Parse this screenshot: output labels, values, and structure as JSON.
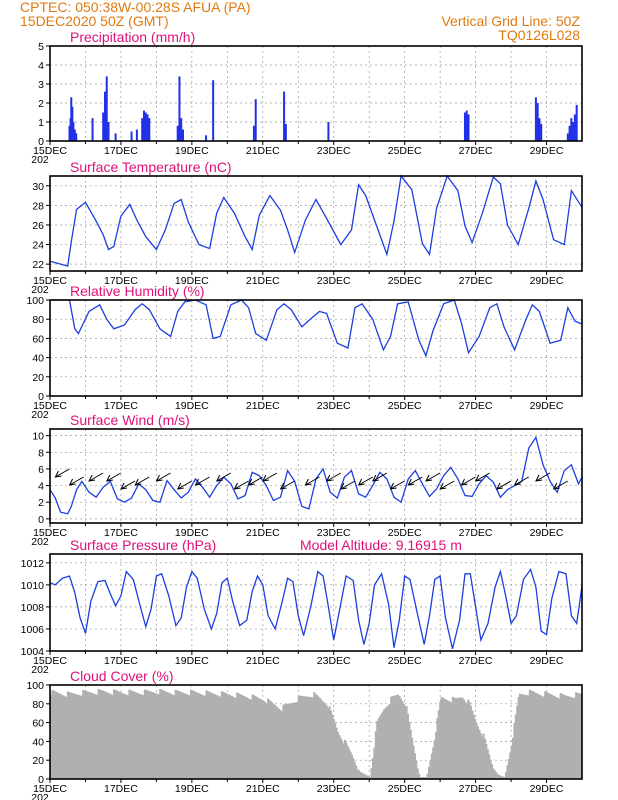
{
  "header": {
    "line1_left": "CPTEC:   050:38W-00:28S   AFUA (PA)",
    "line2_left": "15DEC2020 50Z (GMT)",
    "line1_right": "Vertical Grid Line: 50Z",
    "line2_right": "TQ0126L028"
  },
  "model_altitude": "Model Altitude: 9.16915 m",
  "x_labels": [
    "15DEC",
    "17DEC",
    "19DEC",
    "21DEC",
    "23DEC",
    "25DEC",
    "27DEC",
    "29DEC"
  ],
  "x_year_stub": "202",
  "colors": {
    "header": "#e07a10",
    "title": "#e0107a",
    "series": "#1c3fe0",
    "precip": "#2030e8",
    "cloud": "#b0b0b0"
  },
  "chart_data": [
    {
      "type": "bar",
      "title": "Precipitation (mm/h)",
      "ylim": [
        0,
        5
      ],
      "yticks": [
        "0",
        "1",
        "2",
        "3",
        "4",
        "5"
      ],
      "x_range_days": [
        0,
        15
      ],
      "events": [
        {
          "x": 0.55,
          "y": 0.8
        },
        {
          "x": 0.58,
          "y": 1.2
        },
        {
          "x": 0.6,
          "y": 2.3
        },
        {
          "x": 0.63,
          "y": 1.8
        },
        {
          "x": 0.66,
          "y": 1.0
        },
        {
          "x": 0.7,
          "y": 0.6
        },
        {
          "x": 0.74,
          "y": 0.4
        },
        {
          "x": 1.2,
          "y": 1.2
        },
        {
          "x": 1.5,
          "y": 1.5
        },
        {
          "x": 1.55,
          "y": 2.6
        },
        {
          "x": 1.6,
          "y": 3.4
        },
        {
          "x": 1.65,
          "y": 1.0
        },
        {
          "x": 1.85,
          "y": 0.4
        },
        {
          "x": 2.3,
          "y": 0.5
        },
        {
          "x": 2.45,
          "y": 0.6
        },
        {
          "x": 2.6,
          "y": 1.2
        },
        {
          "x": 2.65,
          "y": 1.6
        },
        {
          "x": 2.7,
          "y": 1.5
        },
        {
          "x": 2.75,
          "y": 1.4
        },
        {
          "x": 2.8,
          "y": 1.2
        },
        {
          "x": 3.6,
          "y": 0.8
        },
        {
          "x": 3.65,
          "y": 3.4
        },
        {
          "x": 3.7,
          "y": 1.2
        },
        {
          "x": 3.75,
          "y": 0.6
        },
        {
          "x": 4.4,
          "y": 0.3
        },
        {
          "x": 4.6,
          "y": 3.2
        },
        {
          "x": 5.75,
          "y": 0.8
        },
        {
          "x": 5.8,
          "y": 2.2
        },
        {
          "x": 6.6,
          "y": 2.6
        },
        {
          "x": 6.65,
          "y": 0.9
        },
        {
          "x": 7.85,
          "y": 1.0
        },
        {
          "x": 11.7,
          "y": 1.5
        },
        {
          "x": 11.75,
          "y": 1.6
        },
        {
          "x": 11.8,
          "y": 1.4
        },
        {
          "x": 13.7,
          "y": 2.3
        },
        {
          "x": 13.75,
          "y": 2.0
        },
        {
          "x": 13.8,
          "y": 1.2
        },
        {
          "x": 13.85,
          "y": 0.9
        },
        {
          "x": 14.6,
          "y": 0.4
        },
        {
          "x": 14.65,
          "y": 0.8
        },
        {
          "x": 14.7,
          "y": 1.2
        },
        {
          "x": 14.75,
          "y": 1.0
        },
        {
          "x": 14.8,
          "y": 1.4
        },
        {
          "x": 14.85,
          "y": 1.9
        }
      ]
    },
    {
      "type": "line",
      "title": "Surface Temperature (nC)",
      "ylim": [
        21.3,
        31
      ],
      "yticks": [
        "22",
        "24",
        "26",
        "28",
        "30"
      ],
      "ytick_values": [
        22,
        24,
        26,
        28,
        30
      ],
      "x": [
        0,
        0.3,
        0.5,
        0.6,
        0.75,
        1.0,
        1.3,
        1.5,
        1.65,
        1.8,
        2.0,
        2.25,
        2.45,
        2.7,
        3.0,
        3.25,
        3.5,
        3.7,
        3.9,
        4.2,
        4.5,
        4.7,
        4.9,
        5.2,
        5.5,
        5.7,
        5.9,
        6.2,
        6.5,
        6.7,
        6.9,
        7.2,
        7.5,
        7.7,
        7.9,
        8.2,
        8.5,
        8.7,
        8.9,
        9.2,
        9.5,
        9.7,
        9.9,
        10.2,
        10.5,
        10.7,
        10.9,
        11.2,
        11.5,
        11.7,
        11.9,
        12.2,
        12.5,
        12.7,
        12.9,
        13.2,
        13.5,
        13.7,
        13.9,
        14.2,
        14.5,
        14.7,
        15.0
      ],
      "y": [
        22.3,
        22.0,
        21.8,
        24.3,
        27.6,
        28.3,
        26.4,
        25.0,
        23.5,
        23.8,
        26.9,
        28.1,
        26.5,
        24.8,
        23.5,
        25.5,
        28.2,
        28.6,
        26.3,
        24.0,
        23.6,
        27.2,
        28.8,
        27.2,
        24.8,
        23.5,
        27.0,
        29.0,
        27.5,
        25.5,
        23.2,
        26.5,
        28.6,
        27.3,
        26.0,
        24.0,
        25.5,
        30.1,
        29.0,
        26.0,
        23.0,
        26.4,
        31.0,
        29.6,
        24.1,
        23.0,
        27.7,
        31.0,
        29.5,
        25.9,
        24.2,
        27.3,
        30.9,
        30.2,
        26.0,
        24.0,
        27.7,
        30.5,
        28.6,
        24.5,
        24.0,
        29.5,
        27.8
      ]
    },
    {
      "type": "line",
      "title": "Relative Humidity (%)",
      "ylim": [
        0,
        100
      ],
      "yticks": [
        "0",
        "20",
        "40",
        "60",
        "80",
        "100"
      ],
      "ytick_values": [
        0,
        20,
        40,
        60,
        80,
        100
      ],
      "x": [
        0,
        0.3,
        0.55,
        0.7,
        0.8,
        1.1,
        1.4,
        1.6,
        1.8,
        2.1,
        2.4,
        2.6,
        2.8,
        3.1,
        3.4,
        3.6,
        3.8,
        4.1,
        4.4,
        4.6,
        4.8,
        5.1,
        5.4,
        5.6,
        5.8,
        6.1,
        6.4,
        6.6,
        6.8,
        7.1,
        7.4,
        7.6,
        7.8,
        8.1,
        8.4,
        8.6,
        8.8,
        9.1,
        9.4,
        9.6,
        9.8,
        10.1,
        10.4,
        10.6,
        10.8,
        11.1,
        11.4,
        11.6,
        11.8,
        12.1,
        12.4,
        12.6,
        12.8,
        13.1,
        13.4,
        13.6,
        13.8,
        14.1,
        14.4,
        14.6,
        14.8,
        15.0
      ],
      "y": [
        100,
        100,
        100,
        70,
        65,
        88,
        95,
        80,
        70,
        74,
        90,
        96,
        90,
        70,
        62,
        88,
        98,
        100,
        95,
        60,
        62,
        95,
        100,
        92,
        65,
        58,
        90,
        96,
        90,
        72,
        82,
        88,
        86,
        55,
        50,
        92,
        96,
        80,
        48,
        62,
        96,
        98,
        58,
        42,
        68,
        96,
        100,
        76,
        45,
        62,
        92,
        96,
        72,
        48,
        78,
        95,
        88,
        55,
        58,
        92,
        78,
        75
      ]
    },
    {
      "type": "line",
      "title": "Surface Wind (m/s)",
      "ylim": [
        -0.5,
        10.8
      ],
      "yticks": [
        "0",
        "2",
        "4",
        "6",
        "8",
        "10"
      ],
      "ytick_values": [
        0,
        2,
        4,
        6,
        8,
        10
      ],
      "x": [
        0,
        0.15,
        0.3,
        0.5,
        0.6,
        0.75,
        0.9,
        1.1,
        1.3,
        1.5,
        1.7,
        1.9,
        2.1,
        2.3,
        2.5,
        2.7,
        2.9,
        3.1,
        3.3,
        3.5,
        3.7,
        3.9,
        4.1,
        4.3,
        4.5,
        4.7,
        4.9,
        5.1,
        5.3,
        5.5,
        5.7,
        5.9,
        6.1,
        6.3,
        6.5,
        6.7,
        6.9,
        7.1,
        7.3,
        7.5,
        7.7,
        7.9,
        8.1,
        8.3,
        8.5,
        8.7,
        8.9,
        9.1,
        9.3,
        9.5,
        9.7,
        9.9,
        10.1,
        10.3,
        10.5,
        10.7,
        10.9,
        11.1,
        11.3,
        11.5,
        11.7,
        11.9,
        12.1,
        12.3,
        12.5,
        12.7,
        12.9,
        13.1,
        13.3,
        13.5,
        13.7,
        13.9,
        14.1,
        14.3,
        14.5,
        14.7,
        14.9,
        15.0
      ],
      "y": [
        3.5,
        2.5,
        0.8,
        0.6,
        1.5,
        3.5,
        4.5,
        3.2,
        2.6,
        3.8,
        4.5,
        2.4,
        2.0,
        2.5,
        4.2,
        3.5,
        2.2,
        2.0,
        4.6,
        3.5,
        2.5,
        3.2,
        4.8,
        3.8,
        2.6,
        4.0,
        5.0,
        4.2,
        2.4,
        2.8,
        5.6,
        5.2,
        4.0,
        2.2,
        2.6,
        5.8,
        4.5,
        1.5,
        1.2,
        4.8,
        6.0,
        3.2,
        2.5,
        5.0,
        5.8,
        3.0,
        2.6,
        4.0,
        5.6,
        4.8,
        2.6,
        2.0,
        4.8,
        5.8,
        4.2,
        2.7,
        3.6,
        5.2,
        6.2,
        4.8,
        2.8,
        2.7,
        4.2,
        5.2,
        4.4,
        2.6,
        3.5,
        4.0,
        4.5,
        8.5,
        9.8,
        6.5,
        4.5,
        3.2,
        5.8,
        6.5,
        4.2,
        5.0
      ]
    },
    {
      "type": "line",
      "title": "Surface Pressure (hPa)",
      "ylim": [
        1004,
        1012.8
      ],
      "yticks": [
        "1004",
        "1006",
        "1008",
        "1010",
        "1012"
      ],
      "ytick_values": [
        1004,
        1006,
        1008,
        1010,
        1012
      ],
      "x": [
        0,
        0.15,
        0.35,
        0.55,
        0.7,
        0.85,
        1.0,
        1.15,
        1.35,
        1.55,
        1.7,
        1.85,
        2.0,
        2.15,
        2.35,
        2.55,
        2.7,
        2.85,
        3.0,
        3.15,
        3.35,
        3.55,
        3.7,
        3.85,
        4.0,
        4.15,
        4.35,
        4.55,
        4.7,
        4.85,
        5.0,
        5.15,
        5.35,
        5.55,
        5.7,
        5.85,
        6.0,
        6.15,
        6.35,
        6.55,
        6.7,
        6.85,
        7.0,
        7.15,
        7.35,
        7.55,
        7.7,
        7.85,
        8.0,
        8.15,
        8.35,
        8.55,
        8.7,
        8.85,
        9.0,
        9.15,
        9.35,
        9.55,
        9.7,
        9.85,
        10.0,
        10.15,
        10.35,
        10.55,
        10.7,
        10.85,
        11.0,
        11.15,
        11.35,
        11.55,
        11.7,
        11.85,
        12.0,
        12.15,
        12.35,
        12.55,
        12.7,
        12.85,
        13.0,
        13.15,
        13.35,
        13.55,
        13.7,
        13.85,
        14.0,
        14.15,
        14.35,
        14.55,
        14.7,
        14.85,
        15.0
      ],
      "y": [
        1010.2,
        1010.0,
        1010.6,
        1010.8,
        1009.3,
        1007.0,
        1005.6,
        1008.5,
        1010.3,
        1010.4,
        1009.2,
        1008.1,
        1009.0,
        1011.2,
        1010.5,
        1008.0,
        1006.2,
        1007.8,
        1010.8,
        1011.0,
        1009.0,
        1006.3,
        1007.0,
        1009.8,
        1011.2,
        1010.6,
        1007.8,
        1006.0,
        1007.4,
        1010.2,
        1010.6,
        1008.5,
        1006.3,
        1006.8,
        1009.4,
        1010.8,
        1010.0,
        1007.2,
        1006.0,
        1008.5,
        1010.6,
        1010.3,
        1007.2,
        1005.4,
        1008.0,
        1011.2,
        1010.8,
        1008.0,
        1005.0,
        1007.5,
        1010.8,
        1010.4,
        1006.8,
        1004.6,
        1006.5,
        1010.0,
        1011.0,
        1008.2,
        1004.3,
        1006.8,
        1010.8,
        1010.5,
        1007.5,
        1004.6,
        1007.2,
        1010.5,
        1010.8,
        1007.0,
        1004.2,
        1006.8,
        1011.0,
        1011.0,
        1008.0,
        1005.0,
        1006.5,
        1009.8,
        1011.2,
        1009.0,
        1006.5,
        1007.2,
        1010.5,
        1011.4,
        1009.8,
        1005.8,
        1005.5,
        1008.8,
        1011.2,
        1011.0,
        1007.2,
        1006.5,
        1009.9
      ]
    },
    {
      "type": "bar",
      "title": "Cloud Cover (%)",
      "ylim": [
        0,
        100
      ],
      "yticks": [
        "0",
        "20",
        "40",
        "60",
        "80",
        "100"
      ],
      "x": [
        0,
        0.5,
        1.0,
        1.5,
        2.0,
        2.5,
        3.0,
        3.5,
        4.0,
        4.5,
        5.0,
        5.5,
        6.0,
        6.5,
        7.0,
        7.4,
        7.8,
        8.1,
        8.3,
        8.5,
        8.7,
        8.85,
        9.0,
        9.2,
        9.4,
        9.6,
        9.8,
        10.0,
        10.2,
        10.4,
        10.6,
        10.8,
        11.0,
        11.2,
        11.4,
        11.6,
        11.8,
        12.0,
        12.2,
        12.4,
        12.5,
        12.6,
        12.7,
        12.8,
        13.0,
        13.2,
        13.5,
        14.0,
        14.5,
        15.0
      ],
      "y": [
        92,
        90,
        92,
        93,
        92,
        92,
        93,
        92,
        92,
        91,
        90,
        88,
        85,
        75,
        86,
        90,
        80,
        50,
        38,
        25,
        8,
        5,
        2,
        60,
        75,
        85,
        90,
        80,
        40,
        2,
        2,
        40,
        86,
        85,
        84,
        88,
        80,
        60,
        45,
        20,
        10,
        5,
        3,
        2,
        40,
        90,
        92,
        90,
        88,
        90
      ]
    }
  ]
}
